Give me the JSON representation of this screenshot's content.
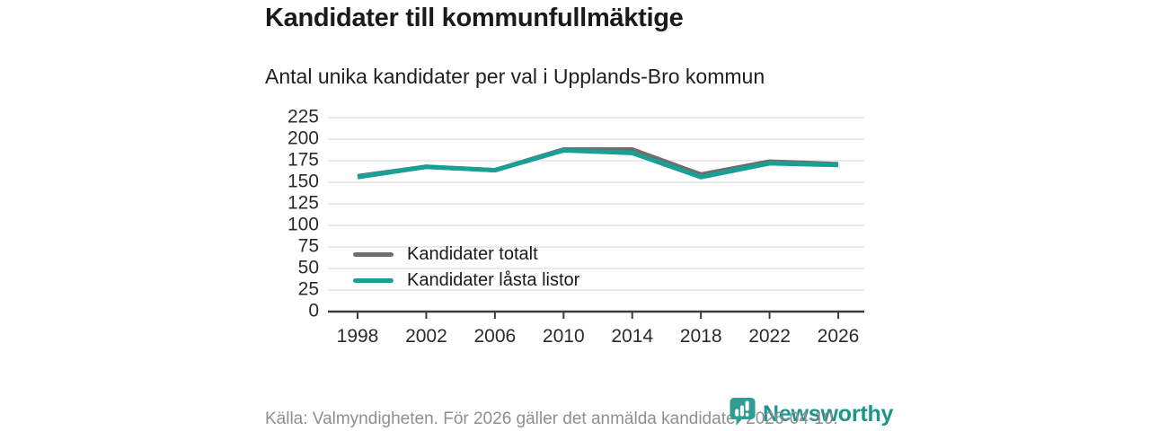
{
  "header": {
    "title": "Kandidater till kommunfullmäktige",
    "subtitle": "Antal unika kandidater per val i Upplands-Bro kommun"
  },
  "chart_data": {
    "type": "line",
    "title": "Kandidater till kommunfullmäktige",
    "subtitle": "Antal unika kandidater per val i Upplands-Bro kommun",
    "categories": [
      "1998",
      "2002",
      "2006",
      "2010",
      "2014",
      "2018",
      "2022",
      "2026"
    ],
    "series": [
      {
        "name": "Kandidater totalt",
        "color": "#6d6e6e",
        "values": [
          157,
          168,
          164,
          188,
          188,
          159,
          174,
          171
        ]
      },
      {
        "name": "Kandidater låsta listor",
        "color": "#19a095",
        "values": [
          156,
          168,
          164,
          187,
          184,
          156,
          172,
          170
        ]
      }
    ],
    "xlabel": "",
    "ylabel": "",
    "ylim": [
      0,
      225
    ],
    "ytick_step": 25,
    "yticks": [
      "0",
      "25",
      "50",
      "75",
      "100",
      "125",
      "150",
      "175",
      "200",
      "225"
    ],
    "grid": "horizontal",
    "legend_position": "inside-bottom-left",
    "gridline_color": "#e3e3e3",
    "axis_color": "#3d3d3d",
    "tick_label_color": "#2b2b2b",
    "source_note": "Källa: Valmyndigheten. För 2026 gäller det anmälda kandidater 2026-04-10."
  },
  "footer": {
    "source": "Källa: Valmyndigheten. För 2026 gäller det anmälda kandidater 2026-04-10.",
    "brand": "Newsworthy",
    "brand_text_color": "#1d948c",
    "brand_icon_color": "#2f9e92"
  }
}
